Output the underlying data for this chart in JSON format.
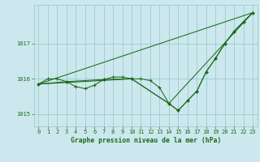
{
  "title": "Graphe pression niveau de la mer (hPa)",
  "bg_color": "#cce8ee",
  "grid_color": "#99cccc",
  "line_color": "#1a6b1a",
  "xlim": [
    -0.5,
    23.5
  ],
  "ylim": [
    1014.65,
    1018.1
  ],
  "yticks": [
    1015,
    1016,
    1017
  ],
  "xticks": [
    0,
    1,
    2,
    3,
    4,
    5,
    6,
    7,
    8,
    9,
    10,
    11,
    12,
    13,
    14,
    15,
    16,
    17,
    18,
    19,
    20,
    21,
    22,
    23
  ],
  "series1_x": [
    0,
    1,
    2,
    3,
    4,
    5,
    6,
    7,
    8,
    9,
    10,
    11,
    12,
    13,
    14,
    15,
    16,
    17,
    18,
    19,
    20,
    21,
    22,
    23
  ],
  "series1_y": [
    1015.85,
    1016.0,
    1016.0,
    1015.92,
    1015.78,
    1015.72,
    1015.82,
    1015.98,
    1016.05,
    1016.05,
    1016.0,
    1016.0,
    1015.95,
    1015.75,
    1015.3,
    1015.1,
    1015.38,
    1015.65,
    1016.2,
    1016.58,
    1017.0,
    1017.35,
    1017.62,
    1017.88
  ],
  "series2_x": [
    0,
    3,
    7,
    10,
    14,
    15,
    16,
    17,
    18,
    19,
    20,
    21,
    22,
    23
  ],
  "series2_y": [
    1015.85,
    1015.92,
    1015.98,
    1016.0,
    1015.3,
    1015.1,
    1015.38,
    1015.65,
    1016.2,
    1016.58,
    1017.0,
    1017.35,
    1017.62,
    1017.88
  ],
  "series3_x": [
    0,
    23
  ],
  "series3_y": [
    1015.85,
    1017.88
  ],
  "series4_x": [
    0,
    10,
    14,
    23
  ],
  "series4_y": [
    1015.85,
    1016.0,
    1015.3,
    1017.88
  ]
}
